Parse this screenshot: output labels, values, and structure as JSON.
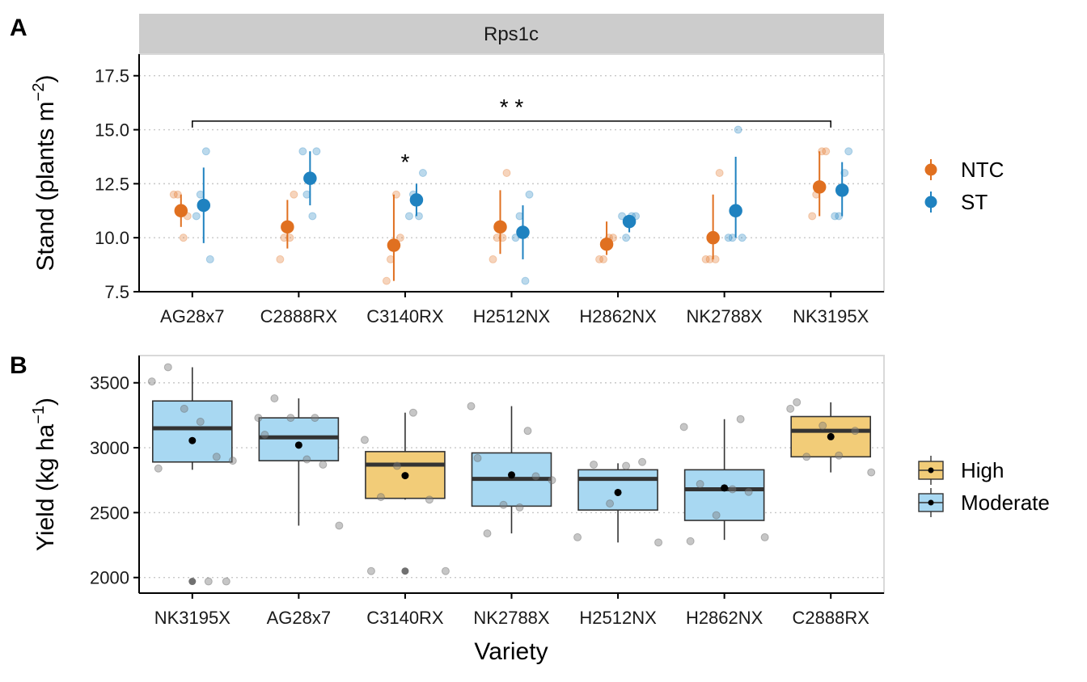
{
  "chart_data": [
    {
      "type": "scatter",
      "panel_label": "A",
      "strip_title": "Rps1c",
      "ylabel": "Stand (plants m",
      "ylabel_sup": "−2",
      "ylabel_close": ")",
      "ylim": [
        7.5,
        18.5
      ],
      "yticks": [
        "7.5",
        "10.0",
        "12.5",
        "15.0",
        "17.5"
      ],
      "ytick_values": [
        7.5,
        10.0,
        12.5,
        15.0,
        17.5
      ],
      "grid": "horizontal-dotted",
      "categories": [
        "AG28x7",
        "C2888RX",
        "C3140RX",
        "H2512NX",
        "H2862NX",
        "NK2788X",
        "NK3195X"
      ],
      "legend_position": "right",
      "series": [
        {
          "name": "NTC",
          "color": "#E07020",
          "mean": [
            11.25,
            10.5,
            9.65,
            10.5,
            9.7,
            10.0,
            12.35
          ],
          "low": [
            10.5,
            9.5,
            8.0,
            9.25,
            9.2,
            9.0,
            11.0
          ],
          "high": [
            12.0,
            11.75,
            12.0,
            12.2,
            10.75,
            12.0,
            14.0
          ],
          "points": [
            [
              12,
              12,
              10,
              11
            ],
            [
              9,
              10,
              10,
              12
            ],
            [
              8,
              9,
              12,
              10
            ],
            [
              9,
              10,
              10,
              13
            ],
            [
              9,
              9,
              10,
              10
            ],
            [
              9,
              9,
              9,
              13
            ],
            [
              11,
              12,
              14,
              14
            ]
          ]
        },
        {
          "name": "ST",
          "color": "#1F82C0",
          "mean": [
            11.5,
            12.75,
            11.75,
            10.25,
            10.75,
            11.25,
            12.2
          ],
          "low": [
            9.75,
            11.5,
            11.0,
            9.0,
            10.25,
            10.0,
            11.0
          ],
          "high": [
            13.25,
            14.0,
            12.5,
            11.5,
            11.0,
            13.75,
            13.5
          ],
          "points": [
            [
              11,
              12,
              14,
              9
            ],
            [
              14,
              12,
              11,
              14
            ],
            [
              11,
              12,
              11,
              13
            ],
            [
              10,
              11,
              8,
              12
            ],
            [
              11,
              10,
              11,
              11
            ],
            [
              10,
              10,
              15,
              10
            ],
            [
              11,
              11,
              13,
              14
            ]
          ]
        }
      ],
      "annotations": [
        {
          "text": "* *",
          "bracket_from": "AG28x7",
          "bracket_to": "NK3195X",
          "y": 15.4
        },
        {
          "text": "*",
          "at": "C3140RX",
          "y": 13.6
        }
      ]
    },
    {
      "type": "box",
      "panel_label": "B",
      "xlabel": "Variety",
      "ylabel": "Yield (kg ha",
      "ylabel_sup": "−1",
      "ylabel_close": ")",
      "ylim": [
        1880,
        3710
      ],
      "yticks": [
        "2000",
        "2500",
        "3000",
        "3500"
      ],
      "ytick_values": [
        2000,
        2500,
        3000,
        3500
      ],
      "grid": "horizontal-dotted",
      "categories": [
        "NK3195X",
        "AG28x7",
        "C3140RX",
        "NK2788X",
        "H2512NX",
        "H2862NX",
        "C2888RX"
      ],
      "legend_position": "right",
      "legend": [
        {
          "name": "High",
          "color": "#F2CC78"
        },
        {
          "name": "Moderate",
          "color": "#A8D8F2"
        }
      ],
      "boxes": [
        {
          "group": "Moderate",
          "q1": 2890,
          "median": 3150,
          "q3": 3360,
          "whisker_low": 2830,
          "whisker_high": 3620,
          "mean": 3055,
          "outliers": [
            1970
          ],
          "points": [
            3510,
            3620,
            3300,
            3200,
            2930,
            2900,
            2840,
            1970,
            1970
          ]
        },
        {
          "group": "Moderate",
          "q1": 2900,
          "median": 3080,
          "q3": 3230,
          "whisker_low": 2400,
          "whisker_high": 3380,
          "mean": 3020,
          "outliers": [],
          "points": [
            3230,
            3380,
            3230,
            2910,
            2870,
            2400,
            3100,
            3230
          ]
        },
        {
          "group": "High",
          "q1": 2610,
          "median": 2870,
          "q3": 2970,
          "whisker_low": 2600,
          "whisker_high": 3270,
          "mean": 2785,
          "outliers": [
            2050
          ],
          "points": [
            3060,
            2620,
            2860,
            3270,
            2600,
            2050,
            2050
          ]
        },
        {
          "group": "Moderate",
          "q1": 2550,
          "median": 2760,
          "q3": 2960,
          "whisker_low": 2340,
          "whisker_high": 3320,
          "mean": 2790,
          "outliers": [],
          "points": [
            3320,
            2340,
            2560,
            2540,
            2780,
            2750,
            2920,
            3130
          ]
        },
        {
          "group": "Moderate",
          "q1": 2520,
          "median": 2760,
          "q3": 2830,
          "whisker_low": 2270,
          "whisker_high": 2880,
          "mean": 2655,
          "outliers": [],
          "points": [
            2310,
            2870,
            2570,
            2860,
            2890,
            2270
          ]
        },
        {
          "group": "Moderate",
          "q1": 2440,
          "median": 2680,
          "q3": 2830,
          "whisker_low": 2290,
          "whisker_high": 3220,
          "mean": 2690,
          "outliers": [],
          "points": [
            3160,
            2720,
            2480,
            2680,
            2660,
            2310,
            2280,
            3220
          ]
        },
        {
          "group": "High",
          "q1": 2930,
          "median": 3130,
          "q3": 3240,
          "whisker_low": 2810,
          "whisker_high": 3350,
          "mean": 3085,
          "outliers": [],
          "points": [
            3300,
            2930,
            3170,
            2940,
            3130,
            2810,
            3350
          ]
        }
      ]
    }
  ]
}
